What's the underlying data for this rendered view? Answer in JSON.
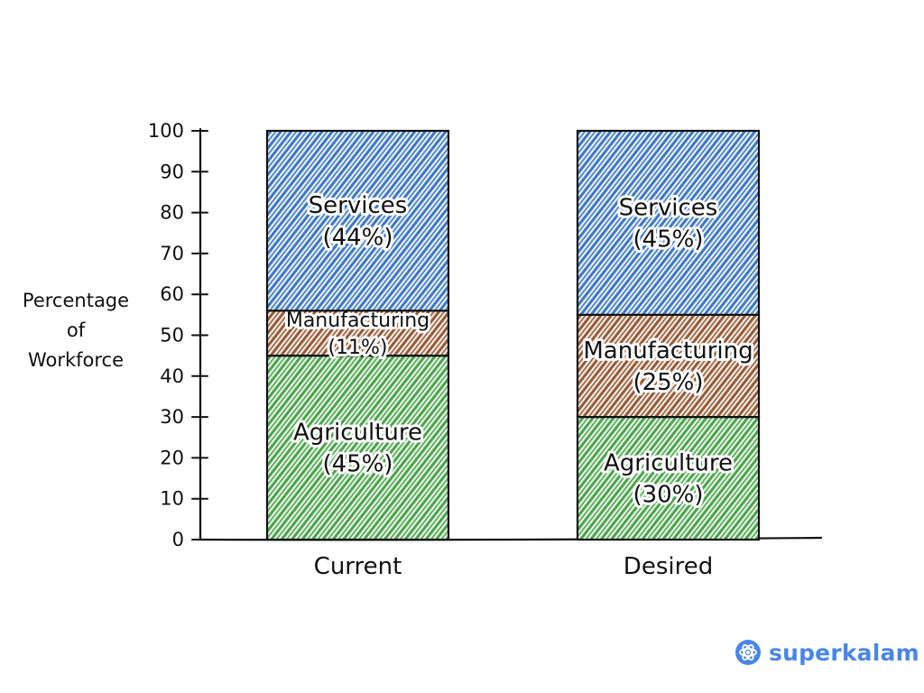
{
  "chart_data": {
    "type": "bar",
    "stacked": true,
    "categories": [
      "Current",
      "Desired"
    ],
    "series": [
      {
        "name": "Agriculture",
        "values": [
          45,
          30
        ],
        "color": "#4aa64a",
        "labels": [
          "Agriculture\n(45%)",
          "Agriculture\n(30%)"
        ]
      },
      {
        "name": "Manufacturing",
        "values": [
          11,
          25
        ],
        "color": "#9a5a35",
        "labels": [
          "Manufacturing\n(11%)",
          "Manufacturing\n(25%)"
        ]
      },
      {
        "name": "Services",
        "values": [
          44,
          45
        ],
        "color": "#3d78c9",
        "labels": [
          "Services\n(44%)",
          "Services\n(45%)"
        ]
      }
    ],
    "ylabel": "Percentage\nof\nWorkforce",
    "xlabel": "",
    "yticks": [
      0,
      10,
      20,
      30,
      40,
      50,
      60,
      70,
      80,
      90,
      100
    ],
    "ylim": [
      0,
      100
    ],
    "grid": false
  },
  "brand": {
    "name": "superkalam",
    "icon": "brain-icon",
    "color": "#4a86e8"
  }
}
